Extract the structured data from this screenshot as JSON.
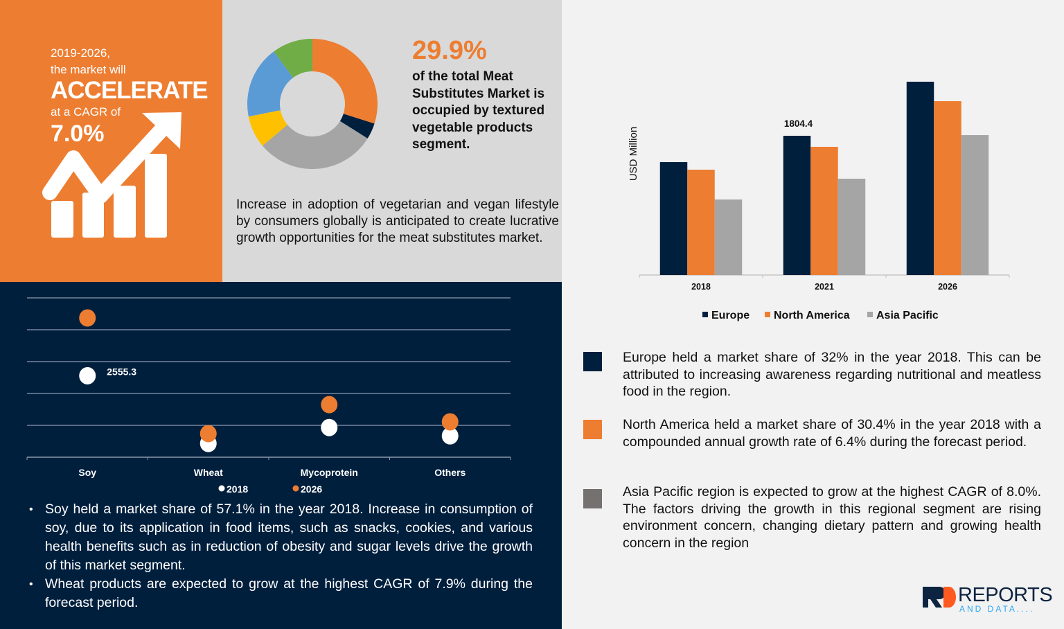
{
  "left_panel": {
    "line1": "2019-2026,",
    "line2": "the market will",
    "headline": "ACCELERATE",
    "line3": "at a CAGR of",
    "cagr": "7.0%",
    "icon": "growth-chart-arrow-icon"
  },
  "share": {
    "value": "29.9%",
    "text": "of the total Meat Substitutes Market is occupied by textured vegetable products segment."
  },
  "intro_text": "Increase in adoption of vegetarian and vegan lifestyle by consumers globally is anticipated to create lucrative growth opportunities for the meat substitutes market.",
  "bullets": [
    "Soy held a market share of 57.1% in the year 2018. Increase in consumption of soy, due to its application in food items, such as snacks, cookies, and various health benefits such as in reduction of obesity and sugar levels drive the growth of this market segment.",
    "Wheat products are expected to grow at the highest CAGR of 7.9% during the forecast period."
  ],
  "notes": [
    {
      "color": "#001f3d",
      "text": "Europe held a market share of 32% in the year 2018. This can be attributed to increasing awareness regarding nutritional and meatless food in the region."
    },
    {
      "color": "#ed7d31",
      "text": "North America held a market share of 30.4% in the year 2018 with a compounded annual growth rate of 6.4% during the forecast period."
    },
    {
      "color": "#767171",
      "text": "Asia Pacific region is expected to grow at the highest CAGR of 8.0%. The factors driving the growth in this regional segment are rising environment concern, changing dietary pattern and growing health concern in the region"
    }
  ],
  "logo": {
    "word": "REPORTS",
    "sub": "AND DATA....",
    "mark": "RD"
  },
  "chart_data": [
    {
      "type": "pie",
      "variant": "donut",
      "highlight": "29.9%",
      "values": [
        29.9,
        4,
        30,
        8,
        18,
        10.1
      ],
      "colors": [
        "#ed7d31",
        "#001f3d",
        "#a5a5a5",
        "#ffc000",
        "#5b9bd5",
        "#70ad47"
      ]
    },
    {
      "type": "scatter",
      "categories": [
        "Soy",
        "Wheat",
        "Mycoprotein",
        "Others"
      ],
      "ylim": [
        0,
        5000
      ],
      "grid": true,
      "legend": "bottom",
      "series": [
        {
          "name": "2018",
          "color": "#ffffff",
          "values": [
            2555.3,
            430,
            930,
            670
          ]
        },
        {
          "name": "2026",
          "color": "#ed7d31",
          "values": [
            4370,
            740,
            1650,
            1110
          ]
        }
      ],
      "data_labels": [
        {
          "series": "2018",
          "category": "Soy",
          "text": "2555.3"
        }
      ]
    },
    {
      "type": "bar",
      "categories": [
        "2018",
        "2021",
        "2026"
      ],
      "ylabel": "USD Million",
      "ylim": [
        0,
        2600
      ],
      "grid": false,
      "legend": "bottom",
      "series": [
        {
          "name": "Europe",
          "color": "#001f3d",
          "values": [
            1463,
            1804.4,
            2505
          ]
        },
        {
          "name": "North America",
          "color": "#ed7d31",
          "values": [
            1365,
            1661,
            2253
          ]
        },
        {
          "name": "Asia Pacific",
          "color": "#a5a5a5",
          "values": [
            979,
            1248,
            1813
          ]
        }
      ],
      "data_labels": [
        {
          "series": "Europe",
          "category": "2021",
          "text": "1804.4"
        }
      ]
    }
  ]
}
